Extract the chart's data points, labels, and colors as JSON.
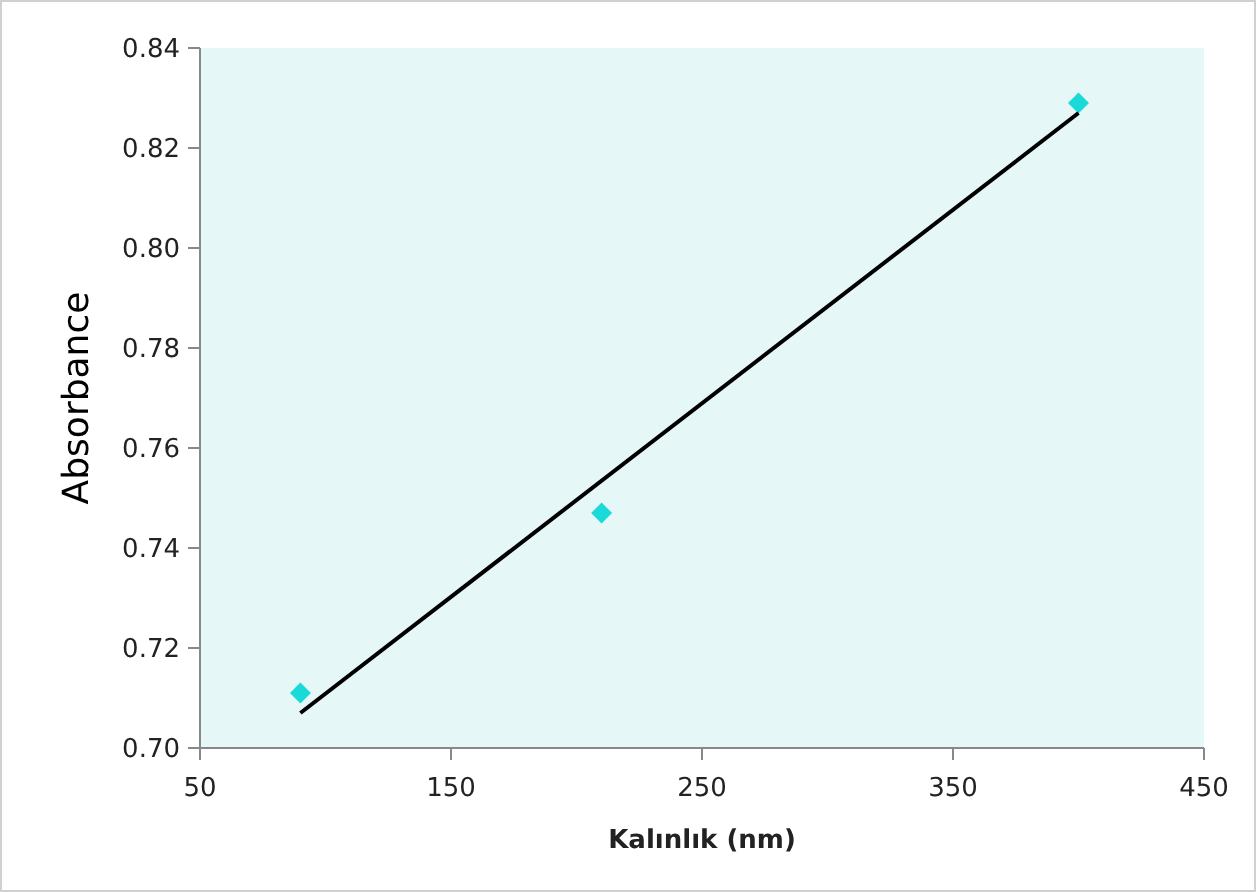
{
  "chart_data": {
    "type": "scatter",
    "xlabel": "Kalınlık (nm)",
    "ylabel": "Absorbance",
    "xlim": [
      50,
      450
    ],
    "xticks": [
      50,
      150,
      250,
      350,
      450
    ],
    "ylim": [
      0.7,
      0.84
    ],
    "yticks": [
      {
        "value": 0.7,
        "label": "0.70"
      },
      {
        "value": 0.72,
        "label": "0.72"
      },
      {
        "value": 0.74,
        "label": "0.74"
      },
      {
        "value": 0.76,
        "label": "0.76"
      },
      {
        "value": 0.78,
        "label": "0.78"
      },
      {
        "value": 0.8,
        "label": "0.80"
      },
      {
        "value": 0.82,
        "label": "0.82"
      },
      {
        "value": 0.84,
        "label": "0.84"
      }
    ],
    "grid": false,
    "series": [
      {
        "color": "#19d9d9",
        "x": [
          90,
          210,
          400
        ],
        "values": [
          0.711,
          0.747,
          0.829
        ],
        "marker": "diamond"
      },
      {
        "type": "line",
        "color": "#000000",
        "x": [
          90,
          400
        ],
        "values": [
          0.707,
          0.827
        ],
        "line_style": "solid"
      }
    ]
  }
}
